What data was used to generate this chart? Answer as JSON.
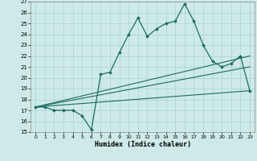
{
  "xlabel": "Humidex (Indice chaleur)",
  "bg_color": "#ceeae8",
  "grid_color": "#a8d4d0",
  "line_color": "#1a6b60",
  "xlim": [
    -0.5,
    23.5
  ],
  "ylim": [
    15,
    27
  ],
  "yticks": [
    15,
    16,
    17,
    18,
    19,
    20,
    21,
    22,
    23,
    24,
    25,
    26,
    27
  ],
  "xticks": [
    0,
    1,
    2,
    3,
    4,
    5,
    6,
    7,
    8,
    9,
    10,
    11,
    12,
    13,
    14,
    15,
    16,
    17,
    18,
    19,
    20,
    21,
    22,
    23
  ],
  "main_x": [
    0,
    1,
    2,
    3,
    4,
    5,
    6,
    7,
    8,
    9,
    10,
    11,
    12,
    13,
    14,
    15,
    16,
    17,
    18,
    19,
    20,
    21,
    22,
    23
  ],
  "main_y": [
    17.3,
    17.3,
    17.0,
    17.0,
    17.0,
    16.5,
    15.2,
    20.3,
    20.5,
    22.3,
    24.0,
    25.5,
    23.8,
    24.5,
    25.0,
    25.2,
    26.8,
    25.2,
    23.0,
    21.5,
    21.0,
    21.3,
    22.0,
    18.8
  ],
  "line2_x": [
    0,
    23
  ],
  "line2_y": [
    17.3,
    22.0
  ],
  "line3_x": [
    0,
    23
  ],
  "line3_y": [
    17.3,
    21.0
  ],
  "line4_x": [
    0,
    23
  ],
  "line4_y": [
    17.3,
    18.8
  ]
}
